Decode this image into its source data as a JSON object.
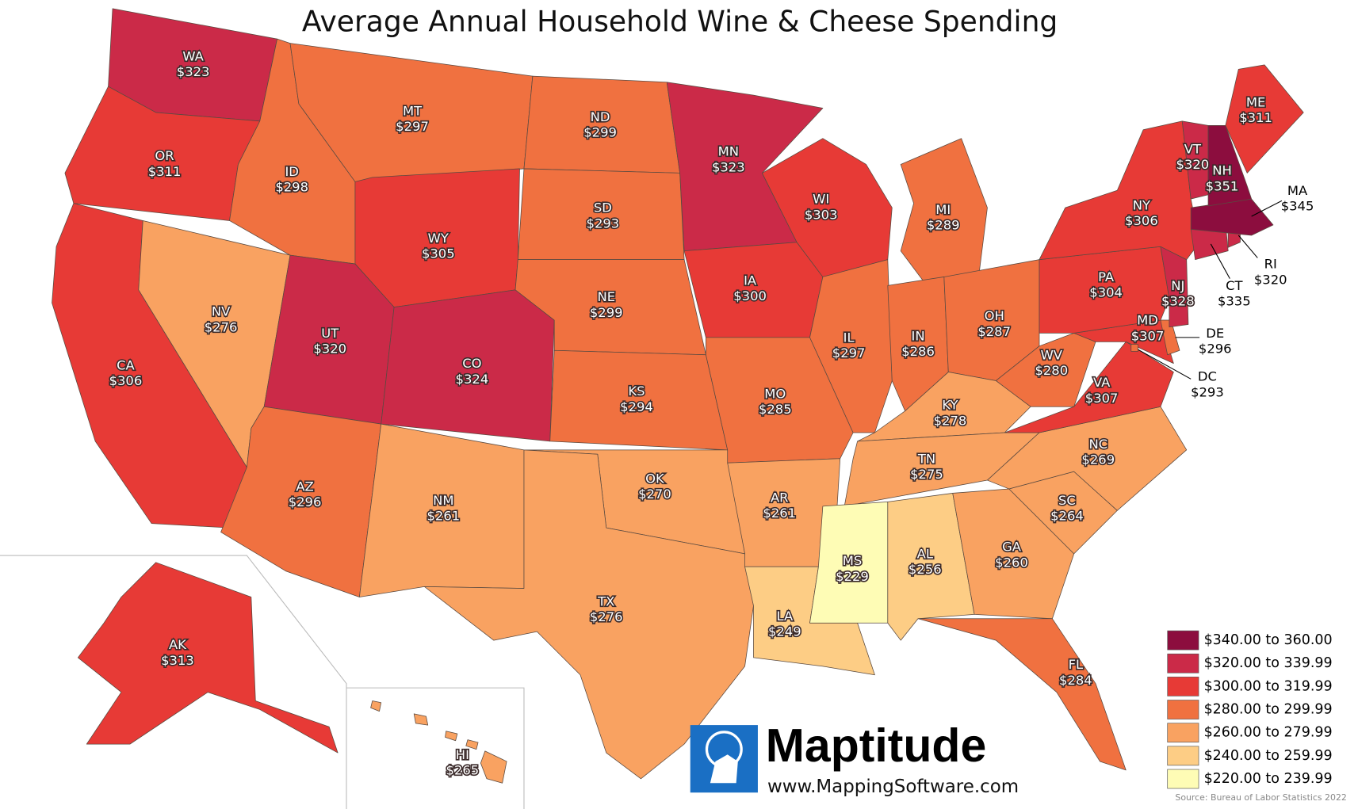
{
  "title": "Average Annual Household Wine & Cheese Spending",
  "states": [
    "WA",
    "OR",
    "CA",
    "NV",
    "ID",
    "MT",
    "WY",
    "UT",
    "AZ",
    "CO",
    "NM",
    "ND",
    "SD",
    "NE",
    "KS",
    "OK",
    "TX",
    "MN",
    "IA",
    "MO",
    "AR",
    "LA",
    "WI",
    "IL",
    "MI",
    "IN",
    "OH",
    "KY",
    "TN",
    "MS",
    "AL",
    "GA",
    "FL",
    "SC",
    "NC",
    "VA",
    "WV",
    "MD",
    "DE",
    "DC",
    "PA",
    "NJ",
    "NY",
    "CT",
    "RI",
    "MA",
    "VT",
    "NH",
    "ME",
    "AK",
    "HI"
  ],
  "values": [
    323,
    311,
    306,
    276,
    298,
    297,
    305,
    320,
    296,
    324,
    261,
    299,
    293,
    299,
    294,
    270,
    276,
    323,
    300,
    285,
    261,
    249,
    303,
    297,
    289,
    286,
    287,
    278,
    275,
    229,
    256,
    260,
    284,
    264,
    269,
    307,
    280,
    307,
    296,
    293,
    304,
    328,
    306,
    335,
    320,
    345,
    320,
    351,
    311,
    313,
    265
  ],
  "value_labels": [
    "$323",
    "$311",
    "$306",
    "$276",
    "$298",
    "$297",
    "$305",
    "$320",
    "$296",
    "$324",
    "$261",
    "$299",
    "$293",
    "$299",
    "$294",
    "$270",
    "$276",
    "$323",
    "$300",
    "$285",
    "$261",
    "$249",
    "$303",
    "$297",
    "$289",
    "$286",
    "$287",
    "$278",
    "$275",
    "$229",
    "$256",
    "$260",
    "$284",
    "$264",
    "$269",
    "$307",
    "$280",
    "$307",
    "$296",
    "$293",
    "$304",
    "$328",
    "$306",
    "$335",
    "$320",
    "$345",
    "$320",
    "$351",
    "$311",
    "$313",
    "$265"
  ],
  "legend": [
    {
      "label": "$340.00 to 360.00",
      "min": 340,
      "color": "#8c0d3e"
    },
    {
      "label": "$320.00 to 339.99",
      "min": 320,
      "color": "#cb2a48"
    },
    {
      "label": "$300.00 to 319.99",
      "min": 300,
      "color": "#e73a36"
    },
    {
      "label": "$280.00 to 299.99",
      "min": 280,
      "color": "#f07140"
    },
    {
      "label": "$260.00 to 279.99",
      "min": 260,
      "color": "#f9a261"
    },
    {
      "label": "$240.00 to 259.99",
      "min": 240,
      "color": "#fdcd85"
    },
    {
      "label": "$220.00 to 239.99",
      "min": 220,
      "color": "#fefcb5"
    }
  ],
  "logo": {
    "name": "Maptitude",
    "url": "www.MappingSoftware.com"
  },
  "source": "Source: Bureau of Labor Statistics 2022"
}
